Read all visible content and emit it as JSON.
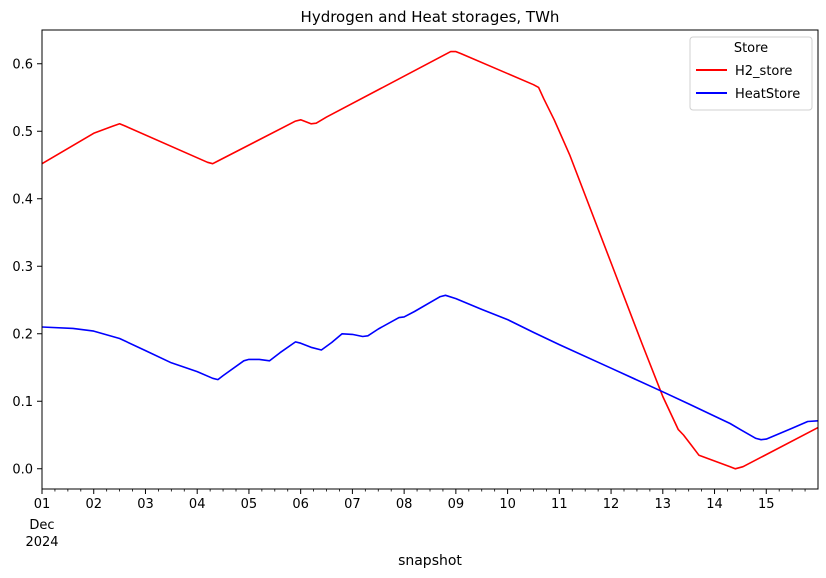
{
  "chart_data": {
    "type": "line",
    "title": "Hydrogen and Heat storages, TWh",
    "xlabel": "snapshot",
    "ylabel": "",
    "x_ticks": [
      "01",
      "02",
      "03",
      "04",
      "05",
      "06",
      "07",
      "08",
      "09",
      "10",
      "11",
      "12",
      "13",
      "14",
      "15"
    ],
    "x_tick_sub": [
      "Dec",
      "2024"
    ],
    "xlim": [
      1,
      16
    ],
    "ylim": [
      -0.03,
      0.65
    ],
    "y_ticks": [
      "0.0",
      "0.1",
      "0.2",
      "0.3",
      "0.4",
      "0.5",
      "0.6"
    ],
    "legend": {
      "title": "Store",
      "position": "top-right"
    },
    "grid": false,
    "series": [
      {
        "name": "H2_store",
        "color": "#ff0000",
        "x": [
          1.0,
          2.0,
          2.35,
          2.5,
          2.6,
          4.2,
          4.3,
          4.4,
          5.9,
          6.0,
          6.2,
          6.3,
          6.5,
          8.9,
          9.0,
          9.1,
          10.5,
          10.6,
          10.7,
          10.9,
          11.2,
          12.0,
          12.6,
          13.0,
          13.3,
          13.4,
          13.55,
          13.7,
          14.3,
          14.4,
          14.55,
          16.0
        ],
        "values": [
          0.452,
          0.497,
          0.507,
          0.511,
          0.508,
          0.454,
          0.452,
          0.456,
          0.515,
          0.517,
          0.511,
          0.512,
          0.521,
          0.618,
          0.618,
          0.615,
          0.569,
          0.565,
          0.548,
          0.517,
          0.465,
          0.305,
          0.185,
          0.107,
          0.058,
          0.05,
          0.035,
          0.02,
          0.003,
          0.0,
          0.003,
          0.061
        ]
      },
      {
        "name": "HeatStore",
        "color": "#0000ff",
        "x": [
          1.0,
          1.6,
          2.0,
          2.5,
          3.0,
          3.5,
          4.0,
          4.3,
          4.4,
          4.5,
          4.9,
          5.0,
          5.2,
          5.4,
          5.6,
          5.9,
          6.0,
          6.2,
          6.4,
          6.6,
          6.8,
          7.0,
          7.2,
          7.3,
          7.5,
          7.9,
          8.0,
          8.2,
          8.7,
          8.8,
          9.0,
          9.5,
          10.0,
          10.5,
          11.0,
          12.0,
          13.0,
          13.5,
          14.0,
          14.3,
          14.5,
          14.8,
          14.9,
          15.0,
          15.5,
          15.8,
          16.0
        ],
        "values": [
          0.21,
          0.208,
          0.204,
          0.193,
          0.175,
          0.157,
          0.144,
          0.134,
          0.132,
          0.138,
          0.16,
          0.162,
          0.162,
          0.16,
          0.172,
          0.188,
          0.186,
          0.18,
          0.176,
          0.187,
          0.2,
          0.199,
          0.196,
          0.197,
          0.207,
          0.224,
          0.225,
          0.233,
          0.255,
          0.257,
          0.252,
          0.236,
          0.221,
          0.202,
          0.184,
          0.149,
          0.114,
          0.096,
          0.078,
          0.067,
          0.058,
          0.045,
          0.043,
          0.044,
          0.06,
          0.07,
          0.071
        ]
      }
    ]
  }
}
